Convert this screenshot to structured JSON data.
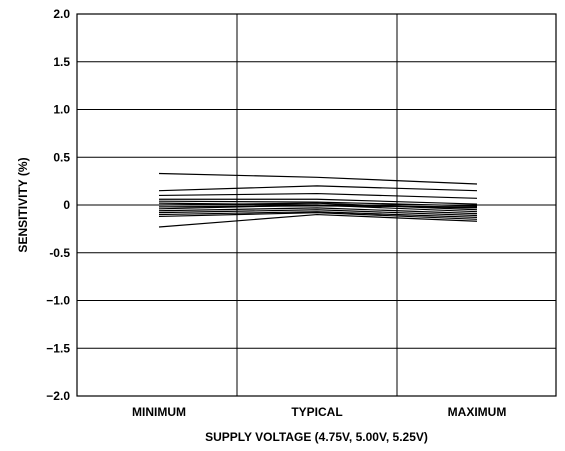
{
  "chart_data": {
    "type": "line",
    "xlabel": "SUPPLY VOLTAGE (4.75V, 5.00V, 5.25V)",
    "ylabel": "SENSITIVITY (%)",
    "categories": [
      "MINIMUM",
      "TYPICAL",
      "MAXIMUM"
    ],
    "ylim": [
      -2.0,
      2.0
    ],
    "yticks": [
      "2.0",
      "1.5",
      "1.0",
      "0.5",
      "0",
      "-0.5",
      "−1.0",
      "−1.5",
      "−2.0"
    ],
    "ytick_values": [
      2.0,
      1.5,
      1.0,
      0.5,
      0,
      -0.5,
      -1.0,
      -1.5,
      -2.0
    ],
    "grid": "vertical lines at each category, horizontal lines at each y tick",
    "series": [
      {
        "values": [
          0.33,
          0.29,
          0.22
        ]
      },
      {
        "values": [
          0.15,
          0.2,
          0.15
        ]
      },
      {
        "values": [
          0.1,
          0.12,
          0.07
        ]
      },
      {
        "values": [
          0.06,
          0.06,
          0.01
        ]
      },
      {
        "values": [
          0.04,
          0.03,
          -0.01
        ]
      },
      {
        "values": [
          0.02,
          0.0,
          -0.03
        ]
      },
      {
        "values": [
          0.0,
          0.02,
          -0.05
        ]
      },
      {
        "values": [
          -0.02,
          -0.01,
          -0.02
        ]
      },
      {
        "values": [
          -0.04,
          0.0,
          -0.07
        ]
      },
      {
        "values": [
          -0.06,
          -0.03,
          -0.09
        ]
      },
      {
        "values": [
          -0.08,
          -0.05,
          -0.11
        ]
      },
      {
        "values": [
          -0.1,
          -0.07,
          -0.13
        ]
      },
      {
        "values": [
          -0.12,
          -0.08,
          -0.15
        ]
      },
      {
        "values": [
          -0.23,
          -0.1,
          -0.17
        ]
      }
    ]
  }
}
